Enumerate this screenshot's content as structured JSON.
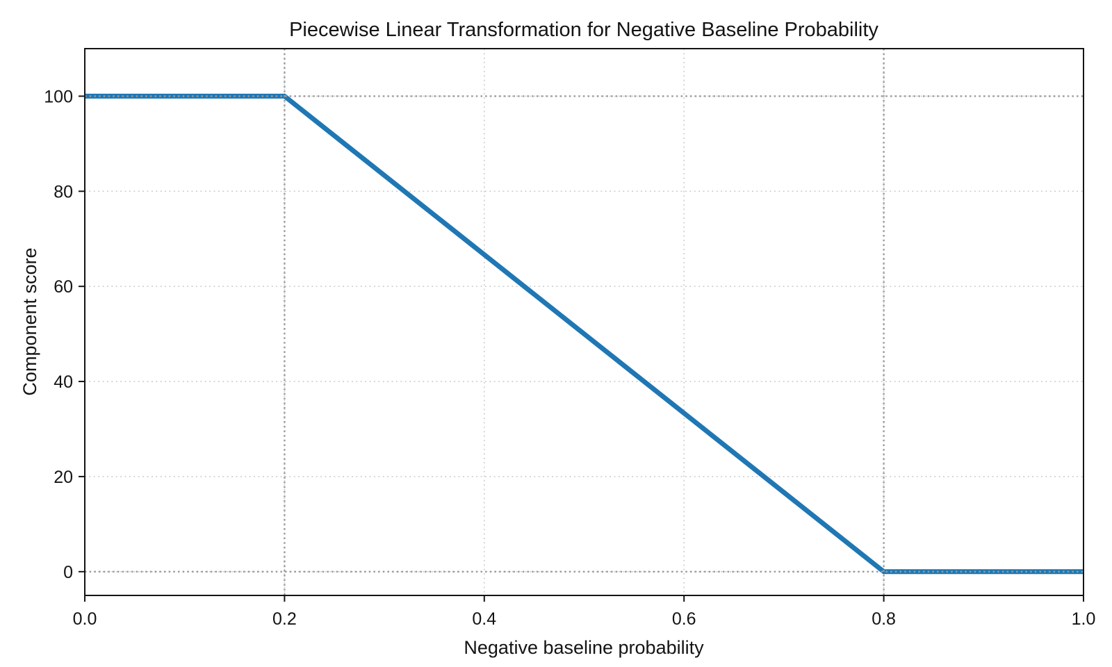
{
  "chart_data": {
    "type": "line",
    "title": "Piecewise Linear Transformation for Negative Baseline Probability",
    "xlabel": "Negative baseline probability",
    "ylabel": "Component score",
    "xlim": [
      0.0,
      1.0
    ],
    "ylim": [
      -5,
      110
    ],
    "xticks": [
      {
        "value": 0.0,
        "label": "0.0"
      },
      {
        "value": 0.2,
        "label": "0.2"
      },
      {
        "value": 0.4,
        "label": "0.4"
      },
      {
        "value": 0.6,
        "label": "0.6"
      },
      {
        "value": 0.8,
        "label": "0.8"
      },
      {
        "value": 1.0,
        "label": "1.0"
      }
    ],
    "yticks": [
      {
        "value": 0,
        "label": "0"
      },
      {
        "value": 20,
        "label": "20"
      },
      {
        "value": 40,
        "label": "40"
      },
      {
        "value": 60,
        "label": "60"
      },
      {
        "value": 80,
        "label": "80"
      },
      {
        "value": 100,
        "label": "100"
      }
    ],
    "grid": true,
    "legend": false,
    "series": [
      {
        "name": "Component score",
        "color": "#1f77b4",
        "line_width": 7,
        "points": [
          [
            0.0,
            100
          ],
          [
            0.2,
            100
          ],
          [
            0.8,
            0
          ],
          [
            1.0,
            0
          ]
        ]
      }
    ],
    "reference_lines": {
      "style": "dotted",
      "color": "#9a9a9a",
      "vertical_x": [
        0.2,
        0.8
      ],
      "horizontal_y": [
        0,
        100
      ]
    },
    "colors": {
      "grid": "#c9c9c9",
      "axis": "#141414",
      "background": "#ffffff",
      "line": "#1f77b4"
    }
  }
}
